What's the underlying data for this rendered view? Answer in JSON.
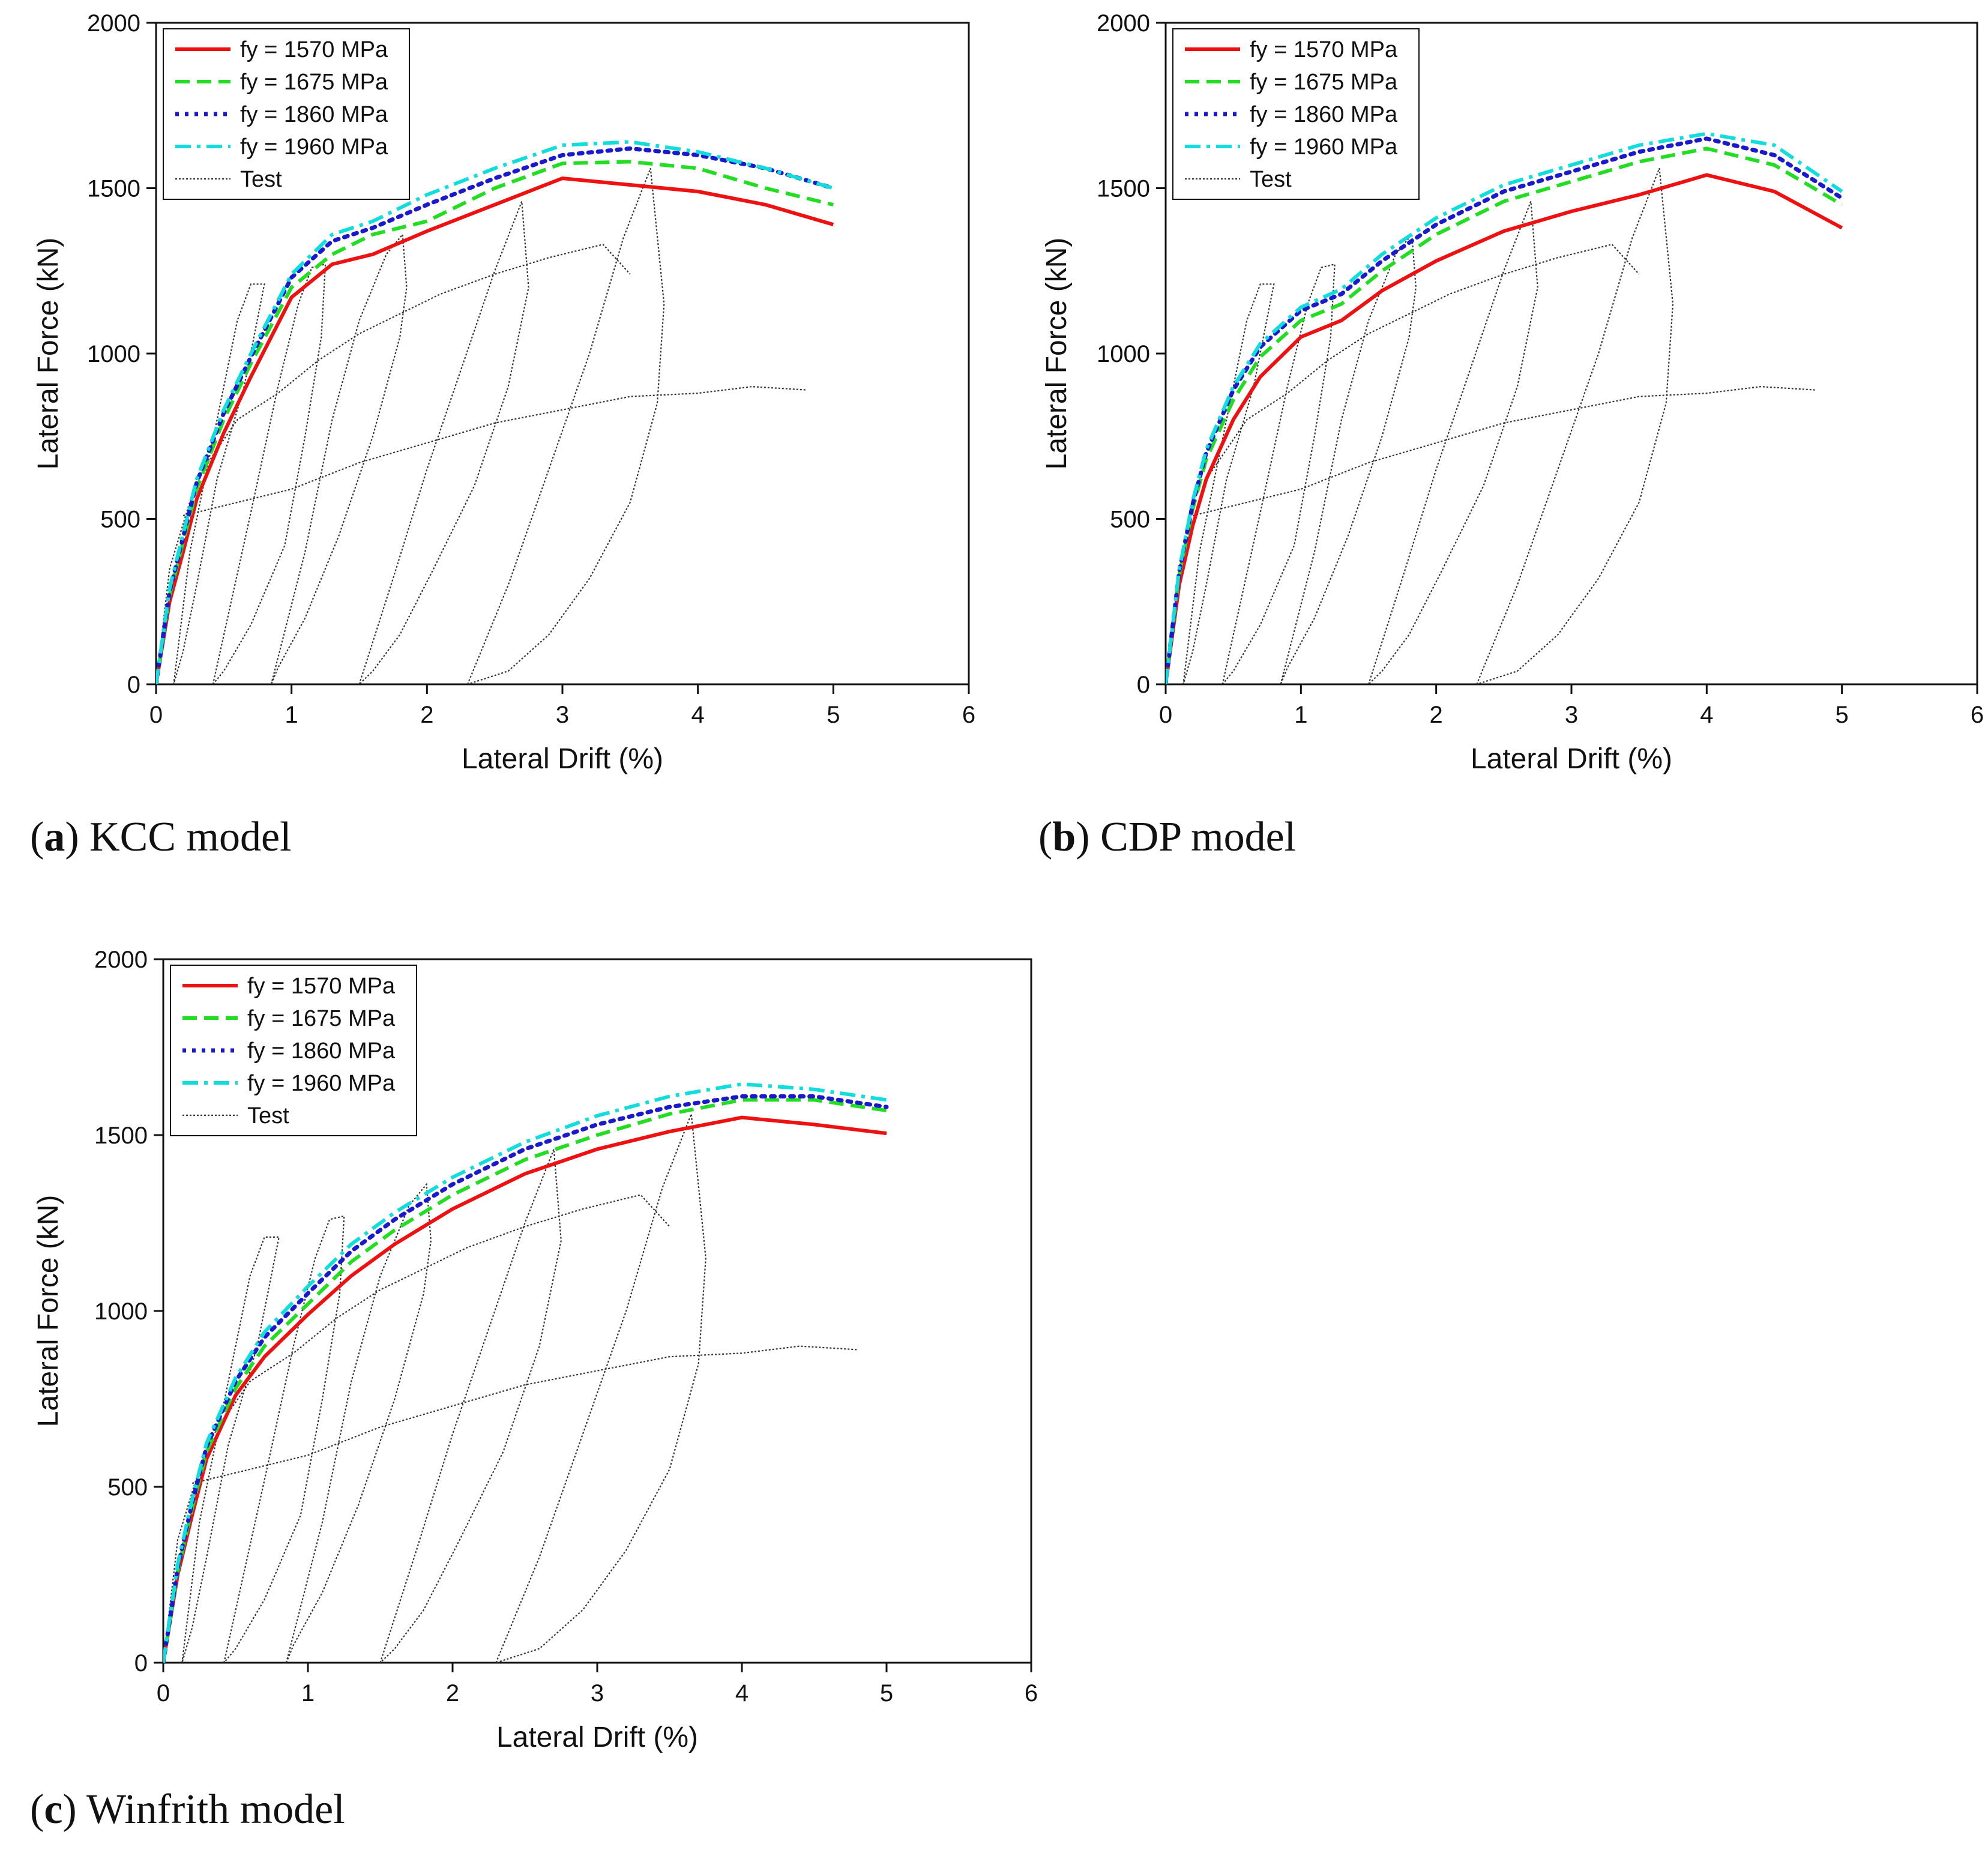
{
  "colors": {
    "fy1570": "#ee1111",
    "fy1675": "#22dd22",
    "fy1860": "#1a1acc",
    "fy1960": "#11dddd",
    "test": "#333333"
  },
  "chart_data": [
    {
      "panel": "a",
      "type": "line",
      "caption": {
        "letter": "a",
        "text": "KCC model"
      },
      "xlabel": "Lateral Drift (%)",
      "ylabel": "Lateral Force (kN)",
      "xlim": [
        0,
        6
      ],
      "ylim": [
        0,
        2000
      ],
      "xticks": [
        "0",
        "1",
        "2",
        "3",
        "4",
        "5",
        "6"
      ],
      "yticks": [
        "0",
        "500",
        "1000",
        "1500",
        "2000"
      ],
      "legend_position": "top-left",
      "series": [
        {
          "name": "fy = 1570 MPa",
          "color_key": "fy1570",
          "style": "solid",
          "x": [
            0,
            0.1,
            0.2,
            0.3,
            0.5,
            0.7,
            1.0,
            1.3,
            1.6,
            2.0,
            2.5,
            3.0,
            3.5,
            4.0,
            4.5,
            5.0
          ],
          "y": [
            0,
            250,
            400,
            560,
            760,
            930,
            1170,
            1270,
            1300,
            1370,
            1450,
            1530,
            1510,
            1490,
            1450,
            1390
          ]
        },
        {
          "name": "fy = 1675 MPa",
          "color_key": "fy1675",
          "style": "dash",
          "x": [
            0,
            0.1,
            0.2,
            0.3,
            0.5,
            0.7,
            1.0,
            1.3,
            1.6,
            2.0,
            2.5,
            3.0,
            3.5,
            4.0,
            4.5,
            5.0
          ],
          "y": [
            0,
            270,
            430,
            590,
            800,
            970,
            1200,
            1300,
            1360,
            1400,
            1500,
            1575,
            1580,
            1560,
            1500,
            1450
          ]
        },
        {
          "name": "fy = 1860 MPa",
          "color_key": "fy1860",
          "style": "dot",
          "x": [
            0,
            0.1,
            0.2,
            0.3,
            0.5,
            0.7,
            1.0,
            1.3,
            1.6,
            2.0,
            2.5,
            3.0,
            3.5,
            4.0,
            4.5,
            5.0
          ],
          "y": [
            0,
            280,
            445,
            610,
            820,
            990,
            1230,
            1340,
            1380,
            1450,
            1530,
            1600,
            1620,
            1600,
            1560,
            1500
          ]
        },
        {
          "name": "fy = 1960 MPa",
          "color_key": "fy1960",
          "style": "dashdot",
          "x": [
            0,
            0.1,
            0.2,
            0.3,
            0.5,
            0.7,
            1.0,
            1.3,
            1.6,
            2.0,
            2.5,
            3.0,
            3.5,
            4.0,
            4.5,
            5.0
          ],
          "y": [
            0,
            290,
            455,
            620,
            830,
            1000,
            1240,
            1360,
            1400,
            1480,
            1560,
            1630,
            1640,
            1610,
            1560,
            1500
          ]
        },
        {
          "name": "Test",
          "color_key": "test",
          "style": "test",
          "x": [],
          "y": []
        }
      ]
    },
    {
      "panel": "b",
      "type": "line",
      "caption": {
        "letter": "b",
        "text": "CDP model"
      },
      "xlabel": "Lateral Drift (%)",
      "ylabel": "Lateral Force (kN)",
      "xlim": [
        0,
        6
      ],
      "ylim": [
        0,
        2000
      ],
      "xticks": [
        "0",
        "1",
        "2",
        "3",
        "4",
        "5",
        "6"
      ],
      "yticks": [
        "0",
        "500",
        "1000",
        "1500",
        "2000"
      ],
      "legend_position": "top-left",
      "series": [
        {
          "name": "fy = 1570 MPa",
          "color_key": "fy1570",
          "style": "solid",
          "x": [
            0,
            0.1,
            0.2,
            0.3,
            0.5,
            0.7,
            1.0,
            1.3,
            1.6,
            2.0,
            2.5,
            3.0,
            3.5,
            4.0,
            4.5,
            5.0
          ],
          "y": [
            0,
            300,
            480,
            620,
            800,
            930,
            1050,
            1100,
            1190,
            1280,
            1370,
            1430,
            1480,
            1540,
            1490,
            1380
          ]
        },
        {
          "name": "fy = 1675 MPa",
          "color_key": "fy1675",
          "style": "dash",
          "x": [
            0,
            0.1,
            0.2,
            0.3,
            0.5,
            0.7,
            1.0,
            1.3,
            1.6,
            2.0,
            2.5,
            3.0,
            3.5,
            4.0,
            4.5,
            5.0
          ],
          "y": [
            0,
            330,
            530,
            680,
            860,
            990,
            1100,
            1150,
            1250,
            1360,
            1460,
            1520,
            1580,
            1620,
            1570,
            1450
          ]
        },
        {
          "name": "fy = 1860 MPa",
          "color_key": "fy1860",
          "style": "dot",
          "x": [
            0,
            0.1,
            0.2,
            0.3,
            0.5,
            0.7,
            1.0,
            1.3,
            1.6,
            2.0,
            2.5,
            3.0,
            3.5,
            4.0,
            4.5,
            5.0
          ],
          "y": [
            0,
            340,
            545,
            700,
            890,
            1020,
            1130,
            1180,
            1280,
            1390,
            1490,
            1550,
            1610,
            1650,
            1600,
            1470
          ]
        },
        {
          "name": "fy = 1960 MPa",
          "color_key": "fy1960",
          "style": "dashdot",
          "x": [
            0,
            0.1,
            0.2,
            0.3,
            0.5,
            0.7,
            1.0,
            1.3,
            1.6,
            2.0,
            2.5,
            3.0,
            3.5,
            4.0,
            4.5,
            5.0
          ],
          "y": [
            0,
            345,
            555,
            710,
            900,
            1030,
            1140,
            1195,
            1300,
            1410,
            1510,
            1570,
            1630,
            1665,
            1630,
            1490
          ]
        },
        {
          "name": "Test",
          "color_key": "test",
          "style": "test",
          "x": [],
          "y": []
        }
      ]
    },
    {
      "panel": "c",
      "type": "line",
      "caption": {
        "letter": "c",
        "text": "Winfrith model"
      },
      "xlabel": "Lateral Drift (%)",
      "ylabel": "Lateral Force (kN)",
      "xlim": [
        0,
        6
      ],
      "ylim": [
        0,
        2000
      ],
      "xticks": [
        "0",
        "1",
        "2",
        "3",
        "4",
        "5",
        "6"
      ],
      "yticks": [
        "0",
        "500",
        "1000",
        "1500",
        "2000"
      ],
      "legend_position": "top-left",
      "series": [
        {
          "name": "fy = 1570 MPa",
          "color_key": "fy1570",
          "style": "solid",
          "x": [
            0,
            0.1,
            0.2,
            0.3,
            0.5,
            0.7,
            1.0,
            1.3,
            1.6,
            2.0,
            2.5,
            3.0,
            3.5,
            4.0,
            4.5,
            5.0
          ],
          "y": [
            0,
            250,
            420,
            580,
            760,
            870,
            990,
            1100,
            1190,
            1290,
            1390,
            1460,
            1510,
            1550,
            1530,
            1505
          ]
        },
        {
          "name": "fy = 1675 MPa",
          "color_key": "fy1675",
          "style": "dash",
          "x": [
            0,
            0.1,
            0.2,
            0.3,
            0.5,
            0.7,
            1.0,
            1.3,
            1.6,
            2.0,
            2.5,
            3.0,
            3.5,
            4.0,
            4.5,
            5.0
          ],
          "y": [
            0,
            260,
            440,
            600,
            780,
            900,
            1020,
            1140,
            1230,
            1330,
            1430,
            1500,
            1560,
            1600,
            1600,
            1570
          ]
        },
        {
          "name": "fy = 1860 MPa",
          "color_key": "fy1860",
          "style": "dot",
          "x": [
            0,
            0.1,
            0.2,
            0.3,
            0.5,
            0.7,
            1.0,
            1.3,
            1.6,
            2.0,
            2.5,
            3.0,
            3.5,
            4.0,
            4.5,
            5.0
          ],
          "y": [
            0,
            270,
            455,
            615,
            800,
            925,
            1050,
            1170,
            1260,
            1360,
            1460,
            1530,
            1580,
            1610,
            1610,
            1580
          ]
        },
        {
          "name": "fy = 1960 MPa",
          "color_key": "fy1960",
          "style": "dashdot",
          "x": [
            0,
            0.1,
            0.2,
            0.3,
            0.5,
            0.7,
            1.0,
            1.3,
            1.6,
            2.0,
            2.5,
            3.0,
            3.5,
            4.0,
            4.5,
            5.0
          ],
          "y": [
            0,
            280,
            465,
            625,
            810,
            940,
            1070,
            1190,
            1280,
            1380,
            1480,
            1555,
            1610,
            1645,
            1630,
            1600
          ]
        },
        {
          "name": "Test",
          "color_key": "test",
          "style": "test",
          "x": [],
          "y": []
        }
      ]
    }
  ],
  "test_data": {
    "name": "Test",
    "loops": [
      {
        "x": [
          0.13,
          0.25,
          0.45,
          0.6,
          0.7,
          0.8,
          0.65,
          0.45,
          0.3,
          0.2,
          0.13
        ],
        "y": [
          0,
          400,
          800,
          1100,
          1210,
          1210,
          900,
          620,
          300,
          100,
          0
        ]
      },
      {
        "x": [
          0.42,
          0.7,
          0.9,
          1.05,
          1.15,
          1.25,
          1.22,
          1.1,
          0.95,
          0.7,
          0.5,
          0.42
        ],
        "y": [
          0,
          520,
          900,
          1150,
          1260,
          1270,
          1050,
          750,
          420,
          180,
          40,
          0
        ]
      },
      {
        "x": [
          0.85,
          1.1,
          1.3,
          1.5,
          1.7,
          1.82,
          1.85,
          1.8,
          1.6,
          1.35,
          1.1,
          0.9,
          0.85
        ],
        "y": [
          0,
          400,
          800,
          1100,
          1300,
          1360,
          1200,
          1050,
          750,
          450,
          200,
          50,
          0
        ]
      },
      {
        "x": [
          1.5,
          1.75,
          2.0,
          2.25,
          2.5,
          2.7,
          2.75,
          2.6,
          2.35,
          2.05,
          1.8,
          1.6,
          1.5
        ],
        "y": [
          0,
          320,
          650,
          950,
          1250,
          1460,
          1200,
          900,
          600,
          350,
          150,
          40,
          0
        ]
      },
      {
        "x": [
          2.3,
          2.6,
          2.9,
          3.2,
          3.45,
          3.65,
          3.75,
          3.7,
          3.5,
          3.2,
          2.9,
          2.6,
          2.3
        ],
        "y": [
          0,
          300,
          650,
          1000,
          1350,
          1560,
          1150,
          850,
          550,
          320,
          150,
          40,
          0
        ]
      }
    ],
    "envelope": {
      "x": [
        0,
        0.1,
        0.3,
        0.6,
        0.9,
        1.2,
        1.5,
        1.8,
        2.1,
        2.5,
        2.9,
        3.3,
        3.5
      ],
      "y": [
        0,
        350,
        620,
        800,
        880,
        980,
        1060,
        1120,
        1180,
        1240,
        1290,
        1330,
        1240
      ]
    },
    "pull": {
      "x": [
        0.2,
        0.5,
        1.0,
        1.5,
        2.0,
        2.5,
        3.0,
        3.5,
        4.0,
        4.4,
        4.8
      ],
      "y": [
        510,
        540,
        590,
        670,
        730,
        790,
        830,
        870,
        880,
        900,
        890
      ]
    }
  }
}
